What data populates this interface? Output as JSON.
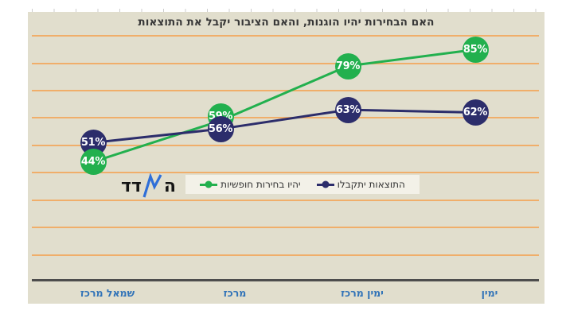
{
  "title": "האם הבחירות יהיו הוגנות, והאם הציבור יקבל את התוצאות",
  "logo": {
    "right_part": "ה",
    "left_part": "דד",
    "zigzag_color": "#2f6fd8",
    "text_color": "#141414"
  },
  "legend": {
    "background": "#f3f1e8",
    "items": [
      {
        "label": "יהיו בחירות חופשיות",
        "color": "#22b04e"
      },
      {
        "label": "התוצאות יתקבלו",
        "color": "#2c2d6b"
      }
    ]
  },
  "chart_data": {
    "type": "line",
    "rtl": true,
    "title": "האם הבחירות יהיו הוגנות, והאם הציבור יקבל את התוצאות",
    "categories": [
      "שמאל מרכז",
      "מרכז",
      "ימין מרכז",
      "ימין"
    ],
    "series": [
      {
        "name": "יהיו בחירות חופשיות",
        "color": "#22b04e",
        "values": [
          44,
          59,
          79,
          85
        ]
      },
      {
        "name": "התוצאות יתקבלו",
        "color": "#2c2d6b",
        "values": [
          51,
          56,
          63,
          62
        ]
      }
    ],
    "data_labels": "percent",
    "ylim": [
      0,
      95
    ],
    "gridlines": {
      "from": 10,
      "to": 90,
      "step": 10,
      "color": "#f0ae6a"
    },
    "plot_background": "#e1decd",
    "axis_color": "#4d4d4d",
    "x_label_color": "#3173b8",
    "legend_position": "bottom-center"
  }
}
